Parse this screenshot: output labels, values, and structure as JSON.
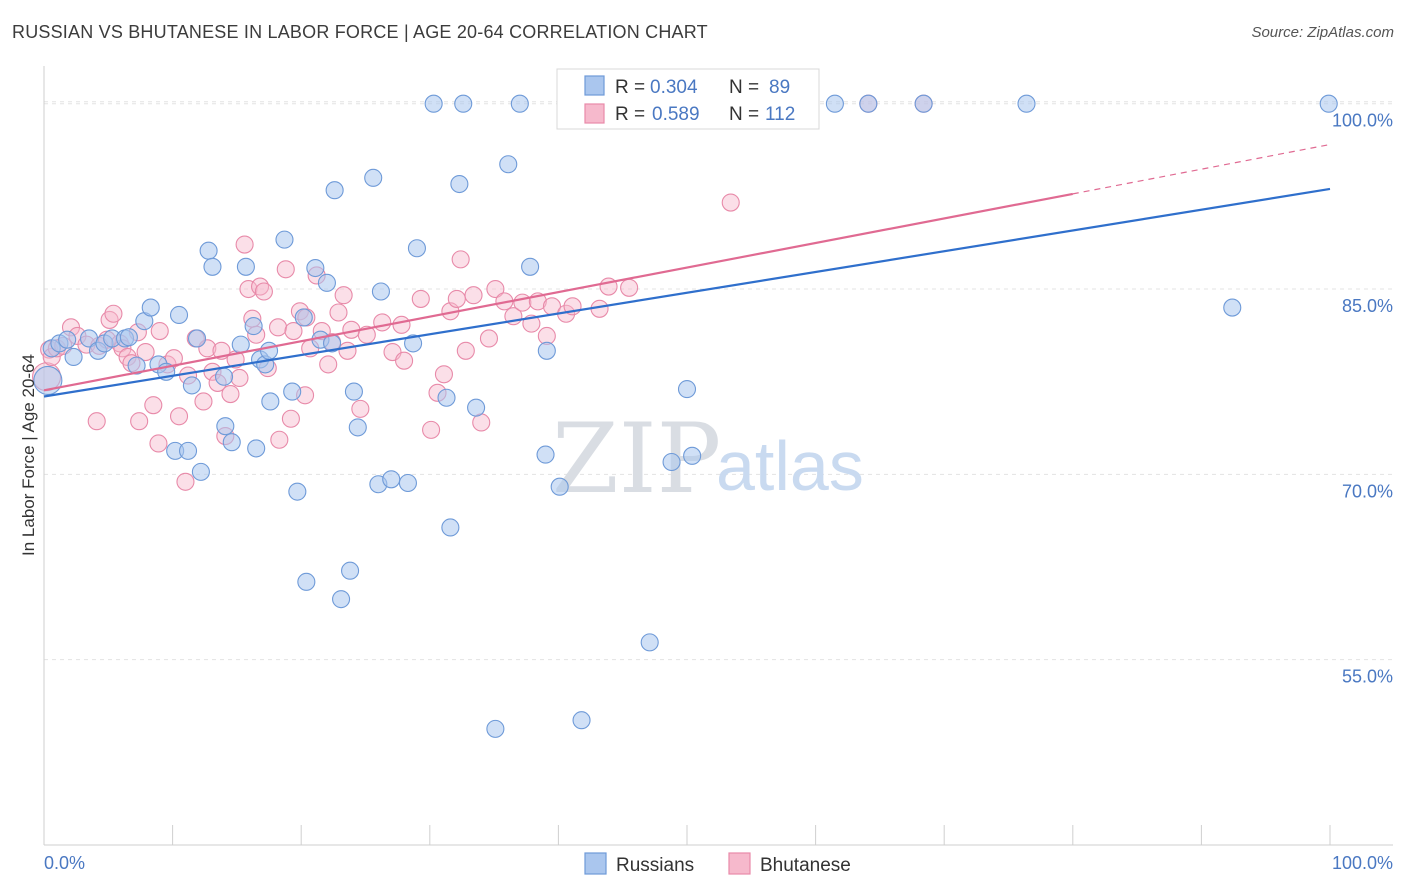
{
  "header": {
    "title": "RUSSIAN VS BHUTANESE IN LABOR FORCE | AGE 20-64 CORRELATION CHART",
    "source": "Source: ZipAtlas.com"
  },
  "legend": {
    "r_label": "R =",
    "n_label": "N =",
    "series": [
      {
        "name": "Russians",
        "r": "0.304",
        "n": "89"
      },
      {
        "name": "Bhutanese",
        "r": "0.589",
        "n": "112"
      }
    ]
  },
  "watermark": {
    "zip": "ZIP",
    "atlas": "atlas"
  },
  "colors": {
    "russians_fill": "#aac6ee",
    "russians_stroke": "#6e9ad8",
    "russians_line": "#2f6fcc",
    "bhutanese_fill": "#f6b9cc",
    "bhutanese_stroke": "#e88aa9",
    "bhutanese_line": "#e06a92",
    "tick_text": "#4a78c2",
    "grid": "#e3e3e3"
  },
  "chart_data": {
    "type": "scatter",
    "title": "RUSSIAN VS BHUTANESE IN LABOR FORCE | AGE 20-64 CORRELATION CHART",
    "xlabel": "",
    "ylabel": "In Labor Force | Age 20-64",
    "xlim": [
      0,
      100
    ],
    "ylim": [
      40,
      102
    ],
    "x_tick_labels": [
      "0.0%",
      "100.0%"
    ],
    "y_ticks": [
      55,
      70,
      85,
      100
    ],
    "y_tick_labels": [
      "55.0%",
      "70.0%",
      "85.0%",
      "100.0%"
    ],
    "grid": true,
    "legend_position": "top-center",
    "series": [
      {
        "name": "Russians",
        "r": 0.304,
        "n": 89,
        "trend": {
          "x0": 0,
          "y0": 76.3,
          "x1": 100,
          "y1": 93.1
        },
        "points": [
          [
            0.3,
            77.6
          ],
          [
            0.6,
            80.2
          ],
          [
            1.2,
            80.6
          ],
          [
            1.8,
            80.9
          ],
          [
            2.3,
            79.5
          ],
          [
            3.5,
            81.0
          ],
          [
            4.2,
            80.0
          ],
          [
            4.7,
            80.6
          ],
          [
            5.3,
            81.0
          ],
          [
            6.3,
            81.0
          ],
          [
            6.6,
            81.1
          ],
          [
            7.2,
            78.8
          ],
          [
            7.8,
            82.4
          ],
          [
            8.3,
            83.5
          ],
          [
            8.9,
            78.9
          ],
          [
            9.5,
            78.3
          ],
          [
            10.5,
            82.9
          ],
          [
            10.2,
            71.9
          ],
          [
            11.2,
            71.9
          ],
          [
            11.5,
            77.2
          ],
          [
            11.9,
            81.0
          ],
          [
            12.2,
            70.2
          ],
          [
            12.8,
            88.1
          ],
          [
            13.1,
            86.8
          ],
          [
            14.0,
            77.9
          ],
          [
            14.1,
            73.9
          ],
          [
            14.6,
            72.6
          ],
          [
            15.3,
            80.5
          ],
          [
            15.7,
            86.8
          ],
          [
            16.3,
            82.0
          ],
          [
            16.5,
            72.1
          ],
          [
            16.8,
            79.3
          ],
          [
            17.2,
            78.9
          ],
          [
            17.5,
            80.0
          ],
          [
            17.6,
            75.9
          ],
          [
            18.7,
            89.0
          ],
          [
            19.3,
            76.7
          ],
          [
            19.7,
            68.6
          ],
          [
            20.2,
            82.7
          ],
          [
            20.4,
            61.3
          ],
          [
            21.1,
            86.7
          ],
          [
            21.5,
            80.9
          ],
          [
            22.0,
            85.5
          ],
          [
            22.4,
            80.6
          ],
          [
            22.6,
            93.0
          ],
          [
            23.1,
            59.9
          ],
          [
            23.8,
            62.2
          ],
          [
            24.1,
            76.7
          ],
          [
            24.4,
            73.8
          ],
          [
            25.6,
            94.0
          ],
          [
            26.0,
            69.2
          ],
          [
            26.2,
            84.8
          ],
          [
            27.0,
            69.6
          ],
          [
            28.3,
            69.3
          ],
          [
            28.7,
            80.6
          ],
          [
            29.0,
            88.3
          ],
          [
            30.3,
            100.0
          ],
          [
            31.3,
            76.2
          ],
          [
            31.6,
            65.7
          ],
          [
            32.3,
            93.5
          ],
          [
            32.6,
            100.0
          ],
          [
            33.6,
            75.4
          ],
          [
            35.1,
            49.4
          ],
          [
            36.1,
            95.1
          ],
          [
            37.0,
            100.0
          ],
          [
            37.8,
            86.8
          ],
          [
            39.0,
            71.6
          ],
          [
            39.1,
            80.0
          ],
          [
            40.1,
            69.0
          ],
          [
            41.1,
            100.0
          ],
          [
            41.8,
            50.1
          ],
          [
            47.1,
            56.4
          ],
          [
            48.8,
            71.0
          ],
          [
            50.0,
            76.9
          ],
          [
            50.4,
            71.5
          ],
          [
            52.0,
            100.0
          ],
          [
            54.5,
            100.0
          ],
          [
            59.2,
            100.0
          ],
          [
            61.5,
            100.0
          ],
          [
            64.1,
            100.0
          ],
          [
            68.4,
            100.0
          ],
          [
            76.4,
            100.0
          ],
          [
            92.4,
            83.5
          ],
          [
            99.9,
            100.0
          ]
        ]
      },
      {
        "name": "Bhutanese",
        "r": 0.589,
        "n": 112,
        "trend": {
          "x0": 0,
          "y0": 76.8,
          "x1": 80,
          "y1": 92.7,
          "dashed_to": {
            "x": 100,
            "y": 96.7
          }
        },
        "points": [
          [
            0.2,
            77.9
          ],
          [
            0.4,
            80.1
          ],
          [
            0.6,
            79.5
          ],
          [
            1.0,
            80.2
          ],
          [
            1.5,
            80.4
          ],
          [
            2.1,
            81.9
          ],
          [
            2.6,
            81.2
          ],
          [
            3.3,
            80.5
          ],
          [
            4.1,
            74.3
          ],
          [
            4.3,
            80.4
          ],
          [
            4.9,
            80.9
          ],
          [
            5.1,
            82.5
          ],
          [
            5.4,
            83.0
          ],
          [
            5.9,
            80.6
          ],
          [
            6.1,
            80.2
          ],
          [
            6.5,
            79.5
          ],
          [
            6.8,
            79.0
          ],
          [
            7.3,
            81.5
          ],
          [
            7.4,
            74.3
          ],
          [
            7.9,
            79.9
          ],
          [
            8.5,
            75.6
          ],
          [
            9.0,
            81.6
          ],
          [
            8.9,
            72.5
          ],
          [
            9.6,
            78.9
          ],
          [
            10.1,
            79.4
          ],
          [
            10.5,
            74.7
          ],
          [
            11.0,
            69.4
          ],
          [
            11.2,
            78.0
          ],
          [
            11.8,
            81.0
          ],
          [
            12.4,
            75.9
          ],
          [
            12.7,
            80.2
          ],
          [
            13.1,
            78.3
          ],
          [
            13.5,
            77.4
          ],
          [
            13.8,
            80.0
          ],
          [
            14.1,
            73.1
          ],
          [
            14.5,
            76.5
          ],
          [
            14.9,
            79.3
          ],
          [
            15.2,
            77.8
          ],
          [
            15.6,
            88.6
          ],
          [
            15.9,
            85.0
          ],
          [
            16.2,
            82.6
          ],
          [
            16.5,
            81.3
          ],
          [
            16.8,
            85.2
          ],
          [
            17.1,
            84.8
          ],
          [
            17.4,
            78.6
          ],
          [
            18.2,
            81.9
          ],
          [
            18.3,
            72.8
          ],
          [
            18.8,
            86.6
          ],
          [
            19.2,
            74.5
          ],
          [
            19.4,
            81.6
          ],
          [
            19.9,
            83.2
          ],
          [
            20.4,
            82.7
          ],
          [
            20.3,
            76.4
          ],
          [
            20.7,
            80.2
          ],
          [
            21.2,
            86.1
          ],
          [
            21.6,
            81.6
          ],
          [
            22.1,
            78.9
          ],
          [
            22.4,
            80.7
          ],
          [
            22.9,
            83.1
          ],
          [
            23.3,
            84.5
          ],
          [
            23.6,
            80.0
          ],
          [
            23.9,
            81.7
          ],
          [
            24.6,
            75.3
          ],
          [
            25.1,
            81.3
          ],
          [
            26.3,
            82.3
          ],
          [
            27.1,
            79.9
          ],
          [
            27.8,
            82.1
          ],
          [
            28.0,
            79.2
          ],
          [
            29.3,
            84.2
          ],
          [
            30.1,
            73.6
          ],
          [
            30.6,
            76.6
          ],
          [
            31.1,
            78.1
          ],
          [
            31.6,
            83.2
          ],
          [
            32.1,
            84.2
          ],
          [
            32.4,
            87.4
          ],
          [
            32.8,
            80.0
          ],
          [
            33.4,
            84.5
          ],
          [
            34.0,
            74.2
          ],
          [
            34.6,
            81.0
          ],
          [
            35.1,
            85.0
          ],
          [
            35.8,
            84.0
          ],
          [
            36.5,
            82.8
          ],
          [
            37.2,
            83.9
          ],
          [
            37.9,
            82.2
          ],
          [
            38.4,
            84.0
          ],
          [
            39.1,
            81.2
          ],
          [
            39.5,
            83.6
          ],
          [
            40.6,
            83.0
          ],
          [
            41.1,
            83.6
          ],
          [
            43.2,
            83.4
          ],
          [
            43.9,
            85.2
          ],
          [
            45.5,
            85.1
          ],
          [
            53.4,
            92.0
          ],
          [
            59.1,
            100.0
          ],
          [
            64.1,
            100.0
          ],
          [
            68.4,
            100.0
          ]
        ]
      }
    ]
  }
}
